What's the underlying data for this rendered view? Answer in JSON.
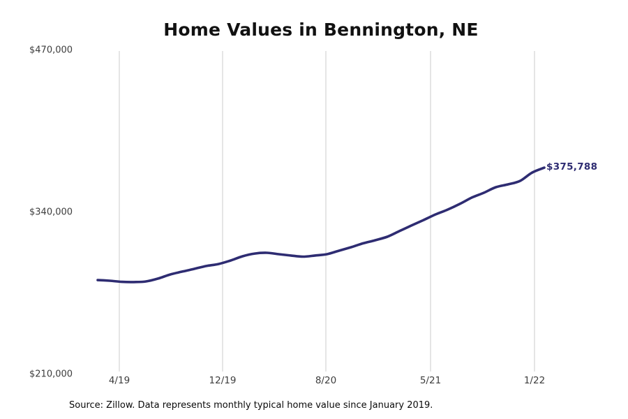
{
  "title": "Home Values in Bennington, NE",
  "source_note": "Source: Zillow. Data represents monthly typical home value since January 2019.",
  "end_label": "$375,788",
  "colors": {
    "line": "#2e2c72",
    "grid": "#cbcbcb",
    "title_text": "#111111",
    "axis_text": "#3d3d3d",
    "end_label_text": "#2e2c72",
    "background": "#ffffff"
  },
  "chart_data": {
    "type": "line",
    "title": "Home Values in Bennington, NE",
    "xlabel": "",
    "ylabel": "",
    "grid": "vertical-only",
    "legend": "none",
    "ylim": [
      210000,
      470000
    ],
    "y_ticks": [
      {
        "label": "$470,000",
        "value": 470000
      },
      {
        "label": "$340,000",
        "value": 340000
      },
      {
        "label": "$210,000",
        "value": 210000
      }
    ],
    "x_ticks": [
      "4/19",
      "12/19",
      "8/20",
      "5/21",
      "1/22"
    ],
    "x": [
      "1/19",
      "2/19",
      "3/19",
      "4/19",
      "5/19",
      "6/19",
      "7/19",
      "8/19",
      "9/19",
      "10/19",
      "11/19",
      "12/19",
      "1/20",
      "2/20",
      "3/20",
      "4/20",
      "5/20",
      "6/20",
      "7/20",
      "8/20",
      "9/20",
      "10/20",
      "11/20",
      "12/20",
      "1/21",
      "2/21",
      "3/21",
      "4/21",
      "5/21",
      "6/21",
      "7/21",
      "8/21",
      "9/21",
      "10/21",
      "11/21",
      "12/21",
      "1/22",
      "2/22"
    ],
    "values": [
      285600,
      285100,
      284200,
      284000,
      284500,
      286800,
      290100,
      292400,
      294600,
      296900,
      298500,
      301300,
      304700,
      306900,
      307500,
      306400,
      305300,
      304400,
      305300,
      306400,
      309200,
      312000,
      315100,
      317600,
      320400,
      324900,
      329400,
      333800,
      338300,
      342200,
      346700,
      351800,
      355700,
      360200,
      362400,
      365200,
      371900,
      375788
    ],
    "last_value": 375788,
    "last_point_label": "$375,788"
  }
}
